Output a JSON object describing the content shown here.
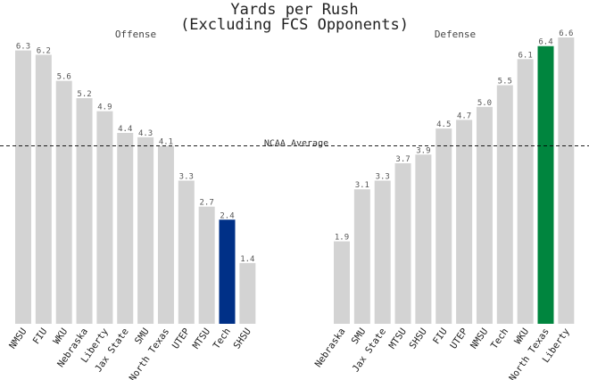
{
  "title_lines": [
    "Yards per Rush",
    "(Excluding FCS Opponents)"
  ],
  "reference_line": {
    "label": "NCAA Average",
    "value": 4.1
  },
  "colors": {
    "bar_default": "#d3d3d3",
    "offense_highlight": "#003087",
    "defense_highlight": "#00853e",
    "reference_line": "#000000"
  },
  "chart_data": [
    {
      "type": "bar",
      "title": "Offense",
      "highlight": "Tech",
      "categories": [
        "NMSU",
        "FIU",
        "WKU",
        "Nebraska",
        "Liberty",
        "Jax State",
        "SMU",
        "North Texas",
        "UTEP",
        "MTSU",
        "Tech",
        "SHSU"
      ],
      "values": [
        6.3,
        6.2,
        5.6,
        5.2,
        4.9,
        4.4,
        4.3,
        4.1,
        3.3,
        2.7,
        2.4,
        1.4
      ],
      "value_labels": [
        "6.3",
        "6.2",
        "5.6",
        "5.2",
        "4.9",
        "4.4",
        "4.3",
        "4.1",
        "3.3",
        "2.7",
        "2.4",
        "1.4"
      ],
      "ylim": [
        0,
        6.6
      ],
      "grid": false
    },
    {
      "type": "bar",
      "title": "Defense",
      "highlight": "North Texas",
      "categories": [
        "Nebraska",
        "SMU",
        "Jax State",
        "MTSU",
        "SHSU",
        "FIU",
        "UTEP",
        "NMSU",
        "Tech",
        "WKU",
        "North Texas",
        "Liberty"
      ],
      "values": [
        1.9,
        3.1,
        3.3,
        3.7,
        3.9,
        4.5,
        4.7,
        5.0,
        5.5,
        6.1,
        6.4,
        6.6
      ],
      "value_labels": [
        "1.9",
        "3.1",
        "3.3",
        "3.7",
        "3.9",
        "4.5",
        "4.7",
        "5.0",
        "5.5",
        "6.1",
        "6.4",
        "6.6"
      ],
      "ylim": [
        0,
        6.6
      ],
      "grid": false
    }
  ]
}
